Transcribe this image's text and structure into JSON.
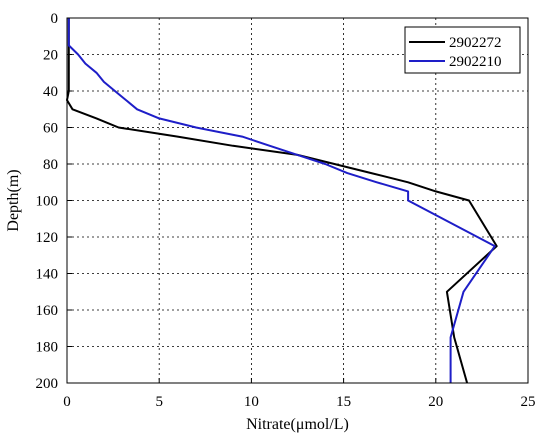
{
  "chart_data": {
    "type": "line",
    "orientation": "depth-profile",
    "xlabel": "Nitrate(μmol/L)",
    "ylabel": "Depth(m)",
    "xlim": [
      0,
      25
    ],
    "ylim": [
      0,
      200
    ],
    "y_inverted": true,
    "x_ticks": [
      "0",
      "5",
      "10",
      "15",
      "20",
      "25"
    ],
    "y_ticks": [
      "0",
      "20",
      "40",
      "60",
      "80",
      "100",
      "120",
      "140",
      "160",
      "180",
      "200"
    ],
    "grid": true,
    "legend_position": "top-right",
    "series": [
      {
        "name": "2902272",
        "color": "#000000",
        "points": [
          {
            "nitrate": 0.1,
            "depth": 0
          },
          {
            "nitrate": 0.1,
            "depth": 20
          },
          {
            "nitrate": 0.1,
            "depth": 40
          },
          {
            "nitrate": 0.0,
            "depth": 45
          },
          {
            "nitrate": 0.3,
            "depth": 50
          },
          {
            "nitrate": 1.6,
            "depth": 55
          },
          {
            "nitrate": 2.8,
            "depth": 60
          },
          {
            "nitrate": 6.0,
            "depth": 65
          },
          {
            "nitrate": 9.0,
            "depth": 70
          },
          {
            "nitrate": 12.5,
            "depth": 75
          },
          {
            "nitrate": 14.5,
            "depth": 80
          },
          {
            "nitrate": 16.5,
            "depth": 85
          },
          {
            "nitrate": 18.5,
            "depth": 90
          },
          {
            "nitrate": 20.0,
            "depth": 95
          },
          {
            "nitrate": 21.8,
            "depth": 100
          },
          {
            "nitrate": 23.3,
            "depth": 125
          },
          {
            "nitrate": 20.6,
            "depth": 150
          },
          {
            "nitrate": 21.0,
            "depth": 175
          },
          {
            "nitrate": 21.7,
            "depth": 200
          }
        ]
      },
      {
        "name": "2902210",
        "color": "#1e1ec8",
        "points": [
          {
            "nitrate": 0.1,
            "depth": 0
          },
          {
            "nitrate": 0.1,
            "depth": 15
          },
          {
            "nitrate": 0.6,
            "depth": 20
          },
          {
            "nitrate": 1.0,
            "depth": 25
          },
          {
            "nitrate": 1.6,
            "depth": 30
          },
          {
            "nitrate": 2.0,
            "depth": 35
          },
          {
            "nitrate": 2.6,
            "depth": 40
          },
          {
            "nitrate": 3.2,
            "depth": 45
          },
          {
            "nitrate": 3.8,
            "depth": 50
          },
          {
            "nitrate": 5.0,
            "depth": 55
          },
          {
            "nitrate": 7.0,
            "depth": 60
          },
          {
            "nitrate": 9.5,
            "depth": 65
          },
          {
            "nitrate": 11.0,
            "depth": 70
          },
          {
            "nitrate": 12.5,
            "depth": 75
          },
          {
            "nitrate": 14.0,
            "depth": 80
          },
          {
            "nitrate": 15.2,
            "depth": 85
          },
          {
            "nitrate": 16.8,
            "depth": 90
          },
          {
            "nitrate": 18.5,
            "depth": 95
          },
          {
            "nitrate": 18.5,
            "depth": 100
          },
          {
            "nitrate": 23.2,
            "depth": 125
          },
          {
            "nitrate": 21.5,
            "depth": 150
          },
          {
            "nitrate": 20.8,
            "depth": 175
          },
          {
            "nitrate": 20.8,
            "depth": 200
          }
        ]
      }
    ]
  }
}
